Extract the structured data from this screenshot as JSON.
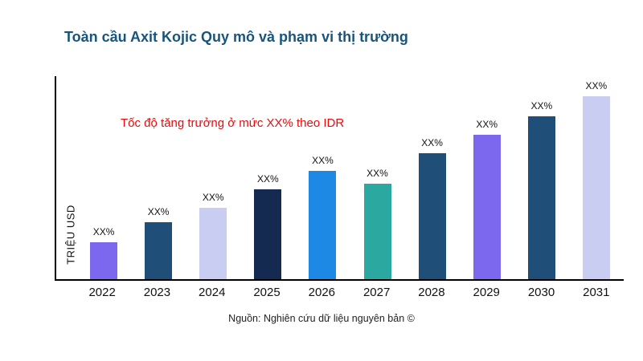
{
  "chart_data": {
    "type": "bar",
    "title": "Toàn cầu Axit Kojic Quy mô và phạm vi thị trường",
    "ylabel": "TRIỆU USD",
    "xlabel": "",
    "annotation": "Tốc độ tăng trưởng ở mức XX% theo IDR",
    "source": "Nguồn: Nghiên cứu dữ liệu nguyên bản ©",
    "categories": [
      "2022",
      "2023",
      "2024",
      "2025",
      "2026",
      "2027",
      "2028",
      "2029",
      "2030",
      "2031"
    ],
    "values": [
      20,
      31,
      39,
      49,
      59,
      52,
      69,
      79,
      89,
      100
    ],
    "bar_labels": [
      "XX%",
      "XX%",
      "XX%",
      "XX%",
      "XX%",
      "XX%",
      "XX%",
      "XX%",
      "XX%",
      "XX%"
    ],
    "colors": [
      "#7B68EE",
      "#1F4E79",
      "#C9CDF2",
      "#152A50",
      "#1E88E5",
      "#2BA8A0",
      "#1F4E79",
      "#7B68EE",
      "#1F4E79",
      "#C9CDF2"
    ],
    "grid": false,
    "legend": false,
    "annotation_color": "#EA0A0A",
    "title_color": "#17557C"
  }
}
